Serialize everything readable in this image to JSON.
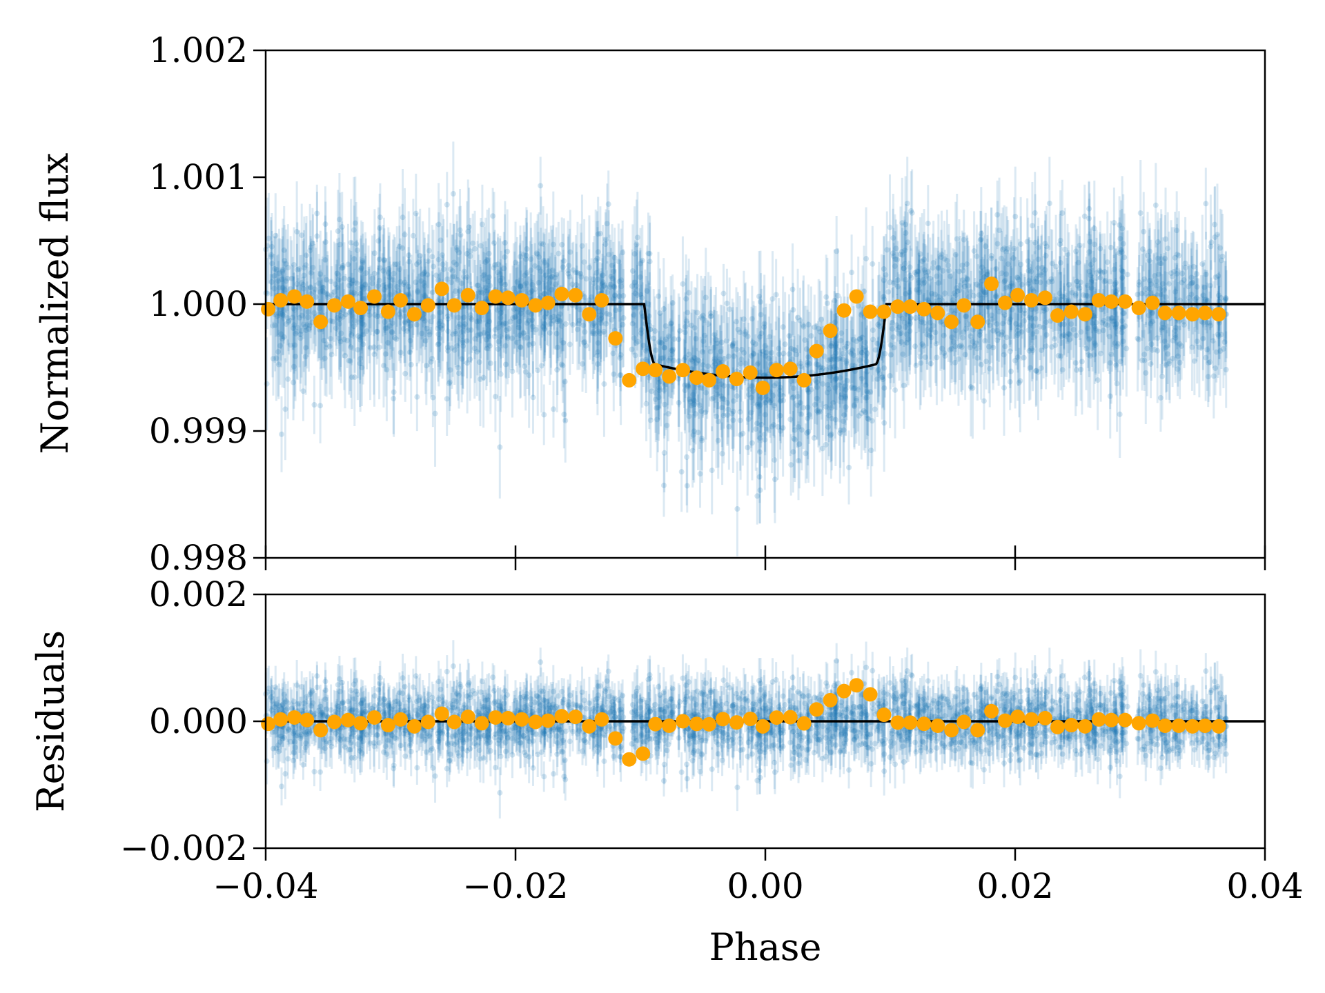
{
  "chart_data": [
    {
      "type": "scatter",
      "panel": "top",
      "xlabel": "",
      "ylabel": "Normalized flux",
      "xlim": [
        -0.04,
        0.04
      ],
      "ylim": [
        0.998,
        1.002
      ],
      "xticks": [
        -0.04,
        -0.02,
        0.0,
        0.02,
        0.04
      ],
      "yticks": [
        "0.998",
        "0.999",
        "1.000",
        "1.001",
        "1.002"
      ],
      "grid": false,
      "series": [
        {
          "kind": "raw-points-with-errorbars",
          "color": "#1f77b4",
          "x_range": [
            -0.04,
            0.037
          ],
          "baseline_out_of_transit": 1.0,
          "in_transit_depth": 0.00058,
          "scatter_sigma": 0.0003,
          "approx_point_count": 2400
        },
        {
          "kind": "binned-points",
          "color": "#ffa500",
          "x": [
            -0.0398,
            -0.0388,
            -0.0377,
            -0.0367,
            -0.0356,
            -0.0345,
            -0.0334,
            -0.0324,
            -0.0313,
            -0.0302,
            -0.0292,
            -0.0281,
            -0.027,
            -0.0259,
            -0.0249,
            -0.0238,
            -0.0227,
            -0.0216,
            -0.0206,
            -0.0195,
            -0.0184,
            -0.0174,
            -0.0163,
            -0.0152,
            -0.0141,
            -0.0131,
            -0.012,
            -0.0109,
            -0.0098,
            -0.0088,
            -0.0077,
            -0.0066,
            -0.0055,
            -0.0045,
            -0.0034,
            -0.0023,
            -0.0012,
            -0.0002,
            0.0009,
            0.002,
            0.0031,
            0.0041,
            0.0052,
            0.0063,
            0.0073,
            0.0084,
            0.0095,
            0.0106,
            0.0116,
            0.0127,
            0.0138,
            0.0149,
            0.0159,
            0.017,
            0.0181,
            0.0192,
            0.0202,
            0.0213,
            0.0224,
            0.0234,
            0.0245,
            0.0256,
            0.0267,
            0.0277,
            0.0288,
            0.0299,
            0.031,
            0.032,
            0.0331,
            0.0342,
            0.0352,
            0.0363
          ],
          "y": [
            0.99996,
            1.00003,
            1.00006,
            1.00002,
            0.99986,
            0.99999,
            1.00002,
            0.99997,
            1.00006,
            0.99994,
            1.00003,
            0.99992,
            0.99999,
            1.00012,
            0.99999,
            1.00007,
            0.99997,
            1.00006,
            1.00005,
            1.00003,
            0.99999,
            1.00001,
            1.00008,
            1.00007,
            0.99992,
            1.00003,
            0.99973,
            0.9994,
            0.99949,
            0.99948,
            0.99943,
            0.99948,
            0.99942,
            0.9994,
            0.99947,
            0.99941,
            0.99946,
            0.99934,
            0.99948,
            0.99949,
            0.9994,
            0.99963,
            0.99979,
            0.99995,
            1.00006,
            0.99994,
            0.99994,
            0.99998,
            0.99998,
            0.99996,
            0.99993,
            0.99986,
            0.99999,
            0.99986,
            1.00016,
            1.00001,
            1.00007,
            1.00003,
            1.00005,
            0.99991,
            0.99994,
            0.99992,
            1.00003,
            1.00002,
            1.00002,
            0.99997,
            1.00001,
            0.99993,
            0.99993,
            0.99992,
            0.99993,
            0.99992
          ]
        },
        {
          "kind": "transit-model-line",
          "color": "#000000",
          "baseline": 1.0,
          "depth": 0.00058,
          "ingress_start": -0.0097,
          "ingress_end": -0.0088,
          "egress_start": 0.0088,
          "egress_end": 0.0097
        }
      ]
    },
    {
      "type": "scatter",
      "panel": "bottom",
      "xlabel": "Phase",
      "ylabel": "Residuals",
      "xlim": [
        -0.04,
        0.04
      ],
      "ylim": [
        -0.002,
        0.002
      ],
      "xticks": [
        "−0.04",
        "−0.02",
        "0.00",
        "0.02",
        "0.04"
      ],
      "yticks": [
        "−0.002",
        "0.000",
        "0.002"
      ],
      "grid": false,
      "series": [
        {
          "kind": "residual-points-with-errorbars",
          "color": "#1f77b4",
          "mean": 0.0,
          "scatter_sigma": 0.0003
        },
        {
          "kind": "binned-residuals",
          "color": "#ffa500",
          "y_mean": 0.0
        },
        {
          "kind": "zero-line",
          "color": "#000000",
          "y": 0.0
        }
      ]
    }
  ]
}
